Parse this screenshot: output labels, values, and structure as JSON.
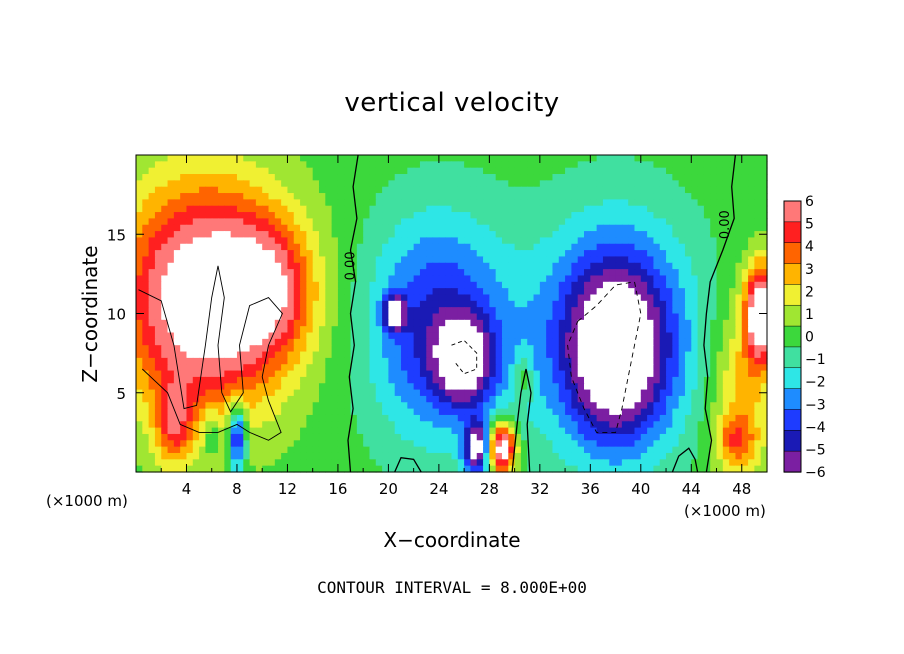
{
  "chart_data": {
    "type": "heatmap",
    "title": "vertical velocity",
    "xlabel": "X−coordinate",
    "ylabel": "Z−coordinate",
    "x_unit_left": "(×1000 m)",
    "x_unit_right": "(×1000 m)",
    "xlim": [
      0,
      50
    ],
    "ylim": [
      0,
      20
    ],
    "x_ticks": [
      4,
      8,
      12,
      16,
      20,
      24,
      28,
      32,
      36,
      40,
      44,
      48
    ],
    "y_ticks": [
      5,
      10,
      15
    ],
    "colorbar_ticks": [
      "6",
      "5",
      "4",
      "3",
      "2",
      "1",
      "0",
      "−1",
      "−2",
      "−3",
      "−4",
      "−5",
      "−6"
    ],
    "colorbar_values": [
      6,
      5,
      4,
      3,
      2,
      1,
      0,
      -1,
      -2,
      -3,
      -4,
      -5,
      -6
    ],
    "contour_labels": [
      {
        "text": "0.00",
        "x": 17.3,
        "y": 13.0
      },
      {
        "text": "0.00",
        "x": 47.0,
        "y": 15.6
      }
    ],
    "blobs": [
      {
        "x": 5.5,
        "y": 11.0,
        "rx": 6.5,
        "ry": 7.0,
        "amp": 9
      },
      {
        "x": 10.5,
        "y": 11.5,
        "rx": 3.5,
        "ry": 4.0,
        "amp": 4
      },
      {
        "x": 3.0,
        "y": 3.0,
        "rx": 1.5,
        "ry": 2.5,
        "amp": 4
      },
      {
        "x": 8.0,
        "y": 2.2,
        "rx": 0.7,
        "ry": 2.2,
        "amp": -6
      },
      {
        "x": 6.0,
        "y": 2.5,
        "rx": 0.6,
        "ry": 1.5,
        "amp": -2
      },
      {
        "x": 29.0,
        "y": 1.5,
        "rx": 1.1,
        "ry": 1.6,
        "amp": 9
      },
      {
        "x": 30.7,
        "y": 6.0,
        "rx": 0.7,
        "ry": 1.6,
        "amp": 2
      },
      {
        "x": 24.0,
        "y": 9.0,
        "rx": 5.5,
        "ry": 7.0,
        "amp": -5
      },
      {
        "x": 26.0,
        "y": 7.0,
        "rx": 2.2,
        "ry": 2.6,
        "amp": -6
      },
      {
        "x": 20.5,
        "y": 10.0,
        "rx": 0.8,
        "ry": 1.0,
        "amp": -7
      },
      {
        "x": 27.0,
        "y": 1.5,
        "rx": 1.0,
        "ry": 1.6,
        "amp": -7
      },
      {
        "x": 38.0,
        "y": 8.5,
        "rx": 6.5,
        "ry": 7.5,
        "amp": -5
      },
      {
        "x": 38.0,
        "y": 7.5,
        "rx": 3.5,
        "ry": 5.0,
        "amp": -6
      },
      {
        "x": 49.5,
        "y": 10.0,
        "rx": 1.2,
        "ry": 3.0,
        "amp": 9
      },
      {
        "x": 48.0,
        "y": 5.0,
        "rx": 2.5,
        "ry": 6.0,
        "amp": 3
      },
      {
        "x": 47.5,
        "y": 2.0,
        "rx": 1.5,
        "ry": 1.5,
        "amp": 3
      }
    ],
    "grid": false,
    "legend": "colorbar-right"
  },
  "footer": {
    "contour_interval": "CONTOUR INTERVAL = 8.000E+00"
  }
}
